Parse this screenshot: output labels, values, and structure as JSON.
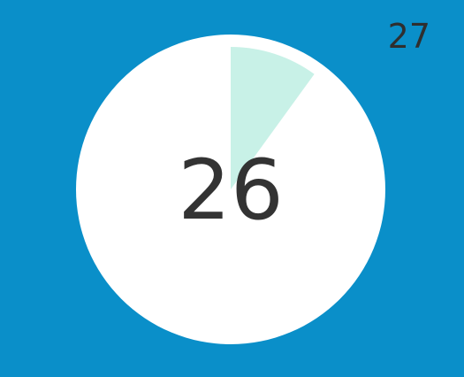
{
  "screen": {
    "current_number": "26",
    "next_number": "27"
  },
  "timer": {
    "progress_fraction": 0.1,
    "colors": {
      "background": "#0A8FC9",
      "dial": "#FFFFFF",
      "progress": "#C8F1E7",
      "text": "#333333"
    }
  }
}
